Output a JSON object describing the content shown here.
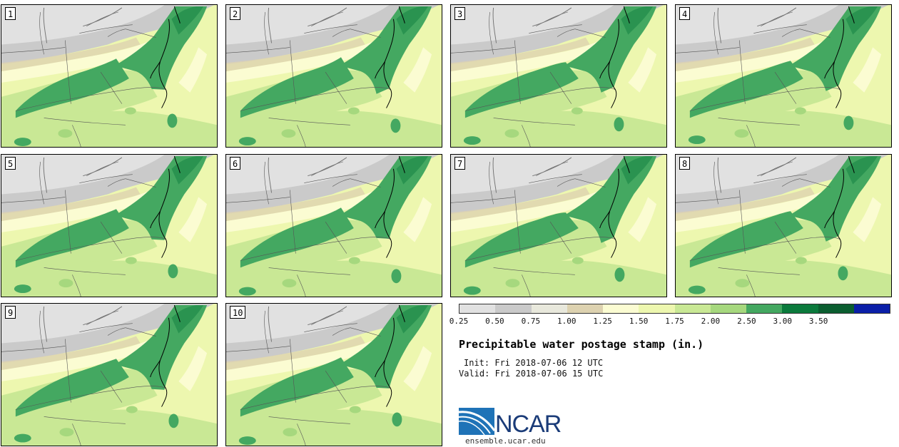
{
  "title": "Precipitable water postage stamp (in.)",
  "init_text": "Init: Fri 2018-07-06 12 UTC",
  "valid_text": "Valid: Fri 2018-07-06 15 UTC",
  "logo_text": "NCAR",
  "url": "ensemble.ucar.edu",
  "members": [
    "1",
    "2",
    "3",
    "4",
    "5",
    "6",
    "7",
    "8",
    "9",
    "10"
  ],
  "colorbar": {
    "ticks": [
      "0.25",
      "0.50",
      "0.75",
      "1.00",
      "1.25",
      "1.50",
      "1.75",
      "2.00",
      "2.50",
      "3.00",
      "3.50"
    ],
    "colors": [
      "#e1e1e1",
      "#cacaca",
      "#e8e8dc",
      "#ddd2b0",
      "#fbfcd2",
      "#edf7af",
      "#c9e895",
      "#a6d87e",
      "#44a861",
      "#0b7a3c",
      "#0b5e30",
      "#0b1fa8"
    ]
  },
  "colors": {
    "grey_light": "#e1e1e1",
    "grey_mid": "#cacaca",
    "tan": "#ddd2b0",
    "pale_yellow": "#fbfcd2",
    "light_yellow_green": "#edf7af",
    "light_green": "#c9e895",
    "med_green": "#a6d87e",
    "green": "#44a861",
    "dark_green": "#0b7a3c"
  }
}
